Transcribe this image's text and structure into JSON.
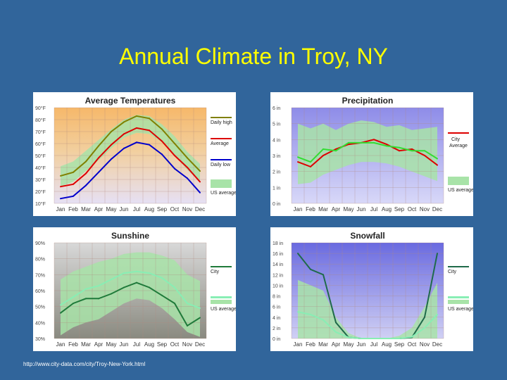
{
  "slide": {
    "title": "Annual Climate in Troy, NY",
    "source_url": "http://www.city-data.com/city/Troy-New-York.html"
  },
  "chart_data": [
    {
      "type": "line",
      "title": "Average Temperatures",
      "categories": [
        "Jan",
        "Feb",
        "Mar",
        "Apr",
        "May",
        "Jun",
        "Jul",
        "Aug",
        "Sep",
        "Oct",
        "Nov",
        "Dec"
      ],
      "ylim": [
        10,
        90
      ],
      "yticks": [
        "10°F",
        "20°F",
        "30°F",
        "40°F",
        "50°F",
        "60°F",
        "70°F",
        "80°F",
        "90°F"
      ],
      "series": [
        {
          "name": "Daily high",
          "color": "#808000",
          "values": [
            33,
            36,
            45,
            58,
            70,
            78,
            83,
            81,
            72,
            60,
            48,
            37
          ]
        },
        {
          "name": "Average",
          "color": "#dd0000",
          "values": [
            24,
            26,
            35,
            48,
            59,
            68,
            73,
            71,
            62,
            50,
            40,
            28
          ]
        },
        {
          "name": "Daily low",
          "color": "#0000cc",
          "values": [
            14,
            16,
            25,
            36,
            47,
            56,
            61,
            59,
            51,
            39,
            31,
            19
          ]
        }
      ],
      "band": {
        "name": "US average",
        "color": "#a8e3a8",
        "lower": [
          24,
          28,
          37,
          46,
          56,
          65,
          69,
          68,
          61,
          50,
          38,
          28
        ],
        "upper": [
          41,
          45,
          54,
          63,
          72,
          80,
          84,
          83,
          76,
          66,
          53,
          43
        ]
      },
      "legend": {
        "high": "Daily high",
        "avg": "Average",
        "low": "Daily low",
        "us": "US average"
      }
    },
    {
      "type": "line",
      "title": "Precipitation",
      "categories": [
        "Jan",
        "Feb",
        "Mar",
        "Apr",
        "May",
        "Jun",
        "Jul",
        "Aug",
        "Sep",
        "Oct",
        "Nov",
        "Dec"
      ],
      "ylim": [
        0,
        6
      ],
      "yticks": [
        "0 in",
        "1 in",
        "2 in",
        "3 in",
        "4 in",
        "5 in",
        "6 in"
      ],
      "series": [
        {
          "name": "City",
          "color": "#dd0000",
          "values": [
            2.6,
            2.3,
            3.0,
            3.4,
            3.7,
            3.8,
            4.0,
            3.7,
            3.3,
            3.4,
            3.0,
            2.4
          ]
        },
        {
          "name": "US average",
          "color": "#33dd33",
          "values": [
            2.9,
            2.6,
            3.4,
            3.3,
            3.8,
            3.8,
            3.8,
            3.6,
            3.5,
            3.3,
            3.3,
            2.8
          ]
        }
      ],
      "band": {
        "name": "US average",
        "color": "#a8e3a8",
        "lower": [
          1.2,
          1.3,
          1.8,
          2.1,
          2.4,
          2.6,
          2.6,
          2.5,
          2.3,
          2.0,
          1.7,
          1.4
        ],
        "upper": [
          5.0,
          4.7,
          5.0,
          4.6,
          5.0,
          5.2,
          5.1,
          4.8,
          4.9,
          4.6,
          4.7,
          4.8
        ]
      },
      "legend": {
        "city": "City",
        "city2": "Average",
        "us": "US average"
      }
    },
    {
      "type": "line",
      "title": "Sunshine",
      "categories": [
        "Jan",
        "Feb",
        "Mar",
        "Apr",
        "May",
        "Jun",
        "Jul",
        "Aug",
        "Sep",
        "Oct",
        "Nov",
        "Dec"
      ],
      "ylim": [
        30,
        90
      ],
      "yticks": [
        "30%",
        "40%",
        "50%",
        "60%",
        "70%",
        "80%",
        "90%"
      ],
      "series": [
        {
          "name": "City",
          "color": "#1f7a3a",
          "values": [
            46,
            52,
            55,
            55,
            58,
            62,
            65,
            62,
            57,
            52,
            38,
            43
          ]
        },
        {
          "name": "US average",
          "color": "#88eeb4",
          "values": [
            51,
            56,
            61,
            63,
            67,
            71,
            72,
            71,
            68,
            62,
            52,
            49
          ]
        }
      ],
      "band": {
        "name": "US average",
        "color": "#a8e3a8",
        "lower": [
          32,
          37,
          40,
          42,
          47,
          52,
          55,
          54,
          49,
          42,
          34,
          31
        ],
        "upper": [
          67,
          72,
          75,
          78,
          80,
          83,
          84,
          84,
          82,
          79,
          70,
          66
        ]
      },
      "legend": {
        "city": "City",
        "us": "US average"
      }
    },
    {
      "type": "line",
      "title": "Snowfall",
      "categories": [
        "Jan",
        "Feb",
        "Mar",
        "Apr",
        "May",
        "Jun",
        "Jul",
        "Aug",
        "Sep",
        "Oct",
        "Nov",
        "Dec"
      ],
      "ylim": [
        0,
        18
      ],
      "yticks": [
        "0 in",
        "2 in",
        "4 in",
        "6 in",
        "8 in",
        "10 in",
        "12 in",
        "14 in",
        "16 in",
        "18 in"
      ],
      "series": [
        {
          "name": "City",
          "color": "#1f6a4a",
          "values": [
            16.0,
            13.0,
            12.0,
            3.0,
            0.2,
            0,
            0,
            0,
            0,
            0.2,
            4.0,
            16.0
          ]
        },
        {
          "name": "US average",
          "color": "#88eeb4",
          "values": [
            5.0,
            4.5,
            3.5,
            1.2,
            0.2,
            0,
            0,
            0,
            0,
            0.3,
            2.0,
            4.5
          ]
        }
      ],
      "band": {
        "name": "US average",
        "color": "#a8e3a8",
        "lower": [
          0,
          0,
          0,
          0,
          0,
          0,
          0,
          0,
          0,
          0,
          0,
          0
        ],
        "upper": [
          11.0,
          10.0,
          9.0,
          4.0,
          1.0,
          0,
          0,
          0,
          0.5,
          2.0,
          6.0,
          10.5
        ]
      },
      "legend": {
        "city": "City",
        "us": "US average"
      }
    }
  ],
  "colors": {
    "slide_background": "#31659b",
    "title": "#ffff00",
    "grid": "#b08a80"
  }
}
